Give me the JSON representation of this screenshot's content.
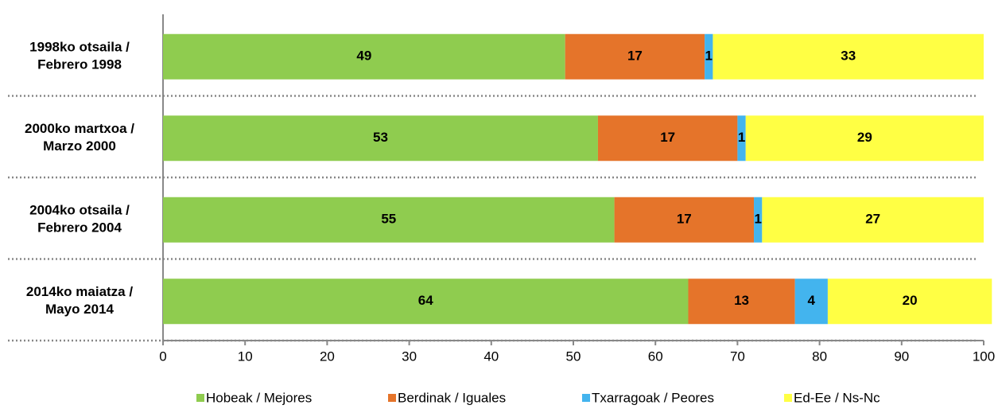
{
  "chart_data": {
    "type": "stacked-barh",
    "categories": [
      [
        "1998ko otsaila /",
        "Febrero 1998"
      ],
      [
        "2000ko martxoa /",
        "Marzo 2000"
      ],
      [
        "2004ko otsaila /",
        "Febrero 2004"
      ],
      [
        "2014ko maiatza /",
        "Mayo 2014"
      ]
    ],
    "series": [
      {
        "name": "Hobeak / Mejores",
        "color": "#8fcc4f",
        "values": [
          49,
          53,
          55,
          64
        ]
      },
      {
        "name": "Berdinak / Iguales",
        "color": "#e5742a",
        "values": [
          17,
          17,
          17,
          13
        ]
      },
      {
        "name": "Txarragoak / Peores",
        "color": "#43b4ee",
        "values": [
          1,
          1,
          1,
          4
        ]
      },
      {
        "name": "Ed-Ee / Ns-Nc",
        "color": "#ffff44",
        "values": [
          33,
          29,
          27,
          20
        ]
      }
    ],
    "xlim": [
      0,
      100
    ],
    "xticks": [
      0,
      10,
      20,
      30,
      40,
      50,
      60,
      70,
      80,
      90,
      100
    ],
    "legend": "bottom"
  }
}
